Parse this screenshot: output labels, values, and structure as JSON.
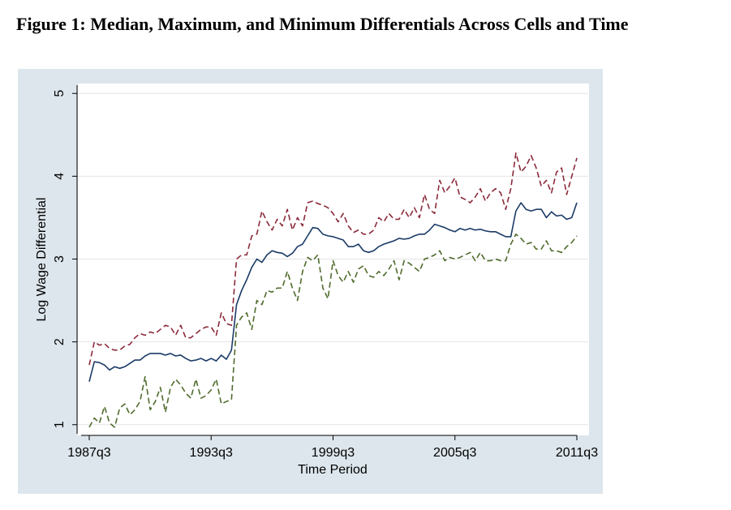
{
  "chart_data": {
    "type": "line",
    "title": "Figure 1: Median, Maximum, and Minimum Differentials Across Cells and Time",
    "x_label": "Time Period",
    "y_label": "Log Wage Differential",
    "categories": [
      "1987q3",
      null,
      null,
      null,
      null,
      null,
      null,
      null,
      null,
      null,
      null,
      null,
      null,
      null,
      null,
      null,
      null,
      null,
      null,
      null,
      null,
      null,
      null,
      null,
      "1993q3",
      null,
      null,
      null,
      null,
      null,
      null,
      null,
      null,
      null,
      null,
      null,
      null,
      null,
      null,
      null,
      null,
      null,
      null,
      null,
      null,
      null,
      null,
      null,
      "1999q3",
      null,
      null,
      null,
      null,
      null,
      null,
      null,
      null,
      null,
      null,
      null,
      null,
      null,
      null,
      null,
      null,
      null,
      null,
      null,
      null,
      null,
      null,
      null,
      "2005q3",
      null,
      null,
      null,
      null,
      null,
      null,
      null,
      null,
      null,
      null,
      null,
      null,
      null,
      null,
      null,
      null,
      null,
      null,
      null,
      null,
      null,
      null,
      null,
      "2011q3"
    ],
    "ylim": [
      0.89,
      5.1
    ],
    "yticks": [
      1,
      2,
      3,
      4,
      5
    ],
    "grid": true,
    "series": [
      {
        "color": "#8b2b3b",
        "dashed": true,
        "values": [
          1.72,
          2.0,
          1.96,
          1.98,
          1.92,
          1.9,
          1.9,
          1.95,
          1.97,
          2.05,
          2.1,
          2.08,
          2.12,
          2.1,
          2.15,
          2.2,
          2.18,
          2.08,
          2.2,
          2.05,
          2.05,
          2.1,
          2.15,
          2.18,
          2.18,
          2.08,
          2.35,
          2.22,
          2.2,
          3.0,
          3.05,
          3.05,
          3.28,
          3.3,
          3.58,
          3.45,
          3.35,
          3.48,
          3.4,
          3.6,
          3.35,
          3.5,
          3.4,
          3.68,
          3.7,
          3.67,
          3.65,
          3.62,
          3.55,
          3.45,
          3.55,
          3.4,
          3.32,
          3.35,
          3.3,
          3.3,
          3.35,
          3.5,
          3.45,
          3.55,
          3.48,
          3.48,
          3.6,
          3.5,
          3.62,
          3.5,
          3.78,
          3.6,
          3.55,
          3.95,
          3.8,
          3.88,
          3.98,
          3.75,
          3.72,
          3.68,
          3.75,
          3.85,
          3.7,
          3.8,
          3.85,
          3.8,
          3.6,
          3.85,
          4.28,
          4.05,
          4.12,
          4.25,
          4.1,
          3.88,
          3.95,
          3.8,
          4.05,
          4.1,
          3.78,
          4.0,
          4.22
        ]
      },
      {
        "color": "#1b3b66",
        "dashed": false,
        "values": [
          1.52,
          1.76,
          1.75,
          1.72,
          1.66,
          1.7,
          1.68,
          1.7,
          1.74,
          1.78,
          1.78,
          1.83,
          1.86,
          1.86,
          1.86,
          1.84,
          1.86,
          1.83,
          1.84,
          1.8,
          1.77,
          1.78,
          1.8,
          1.77,
          1.8,
          1.77,
          1.84,
          1.79,
          1.9,
          2.45,
          2.62,
          2.75,
          2.9,
          3.0,
          2.96,
          3.05,
          3.1,
          3.08,
          3.07,
          3.03,
          3.07,
          3.15,
          3.18,
          3.28,
          3.38,
          3.37,
          3.3,
          3.28,
          3.27,
          3.25,
          3.23,
          3.15,
          3.15,
          3.18,
          3.1,
          3.08,
          3.1,
          3.15,
          3.18,
          3.2,
          3.22,
          3.25,
          3.24,
          3.25,
          3.28,
          3.3,
          3.3,
          3.35,
          3.42,
          3.4,
          3.38,
          3.35,
          3.33,
          3.37,
          3.35,
          3.37,
          3.35,
          3.36,
          3.34,
          3.33,
          3.33,
          3.3,
          3.27,
          3.27,
          3.58,
          3.68,
          3.6,
          3.58,
          3.6,
          3.6,
          3.5,
          3.57,
          3.52,
          3.53,
          3.48,
          3.5,
          3.68
        ]
      },
      {
        "color": "#506b2c",
        "dashed": true,
        "values": [
          0.97,
          1.08,
          1.02,
          1.22,
          1.02,
          0.97,
          1.2,
          1.25,
          1.12,
          1.18,
          1.28,
          1.58,
          1.18,
          1.28,
          1.45,
          1.15,
          1.45,
          1.55,
          1.48,
          1.38,
          1.32,
          1.55,
          1.32,
          1.35,
          1.42,
          1.55,
          1.25,
          1.28,
          1.3,
          2.2,
          2.3,
          2.35,
          2.15,
          2.5,
          2.45,
          2.62,
          2.6,
          2.65,
          2.65,
          2.85,
          2.65,
          2.5,
          2.85,
          3.02,
          2.98,
          3.05,
          2.65,
          2.52,
          2.98,
          2.8,
          2.72,
          2.85,
          2.72,
          2.88,
          2.92,
          2.8,
          2.78,
          2.85,
          2.8,
          2.88,
          2.98,
          2.75,
          2.98,
          2.95,
          2.9,
          2.85,
          3.0,
          3.02,
          3.05,
          3.1,
          2.98,
          3.02,
          3.0,
          3.02,
          3.05,
          3.08,
          2.98,
          3.08,
          2.98,
          2.98,
          3.0,
          2.98,
          2.98,
          3.18,
          3.3,
          3.25,
          3.18,
          3.2,
          3.12,
          3.12,
          3.22,
          3.1,
          3.1,
          3.08,
          3.15,
          3.2,
          3.28
        ]
      }
    ]
  }
}
